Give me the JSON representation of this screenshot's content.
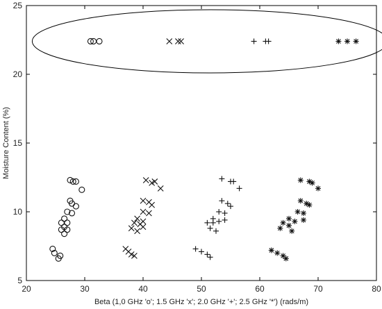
{
  "chart_data": {
    "type": "scatter",
    "xlabel": "Beta (1,0 GHz 'o'; 1.5 GHz 'x'; 2.0 GHz '+'; 2.5 GHz '*') (rads/m)",
    "ylabel": "Moisture Content (%)",
    "xlim": [
      20,
      80
    ],
    "ylim": [
      5,
      25
    ],
    "xticks": [
      "20",
      "30",
      "40",
      "50",
      "60",
      "70",
      "80"
    ],
    "yticks": [
      "5",
      "10",
      "15",
      "20",
      "25"
    ],
    "grid": false,
    "ellipse": {
      "cx": 51.5,
      "cy": 22.4,
      "rx": 30.5,
      "ry": 2.3
    },
    "series": [
      {
        "marker": "o",
        "points": [
          [
            31.0,
            22.4
          ],
          [
            31.5,
            22.4
          ],
          [
            32.5,
            22.4
          ],
          [
            27.5,
            12.3
          ],
          [
            28.0,
            12.2
          ],
          [
            28.5,
            12.2
          ],
          [
            29.5,
            11.6
          ],
          [
            27.5,
            10.8
          ],
          [
            27.8,
            10.6
          ],
          [
            28.5,
            10.4
          ],
          [
            27.0,
            10.0
          ],
          [
            27.8,
            9.9
          ],
          [
            26.5,
            9.5
          ],
          [
            27.0,
            9.2
          ],
          [
            26.0,
            9.2
          ],
          [
            26.5,
            8.9
          ],
          [
            26.0,
            8.7
          ],
          [
            27.0,
            8.7
          ],
          [
            26.5,
            8.4
          ],
          [
            24.5,
            7.3
          ],
          [
            24.8,
            7.0
          ],
          [
            25.8,
            6.8
          ],
          [
            25.5,
            6.6
          ]
        ]
      },
      {
        "marker": "x",
        "points": [
          [
            44.5,
            22.4
          ],
          [
            46.0,
            22.4
          ],
          [
            46.5,
            22.4
          ],
          [
            40.5,
            12.3
          ],
          [
            41.5,
            12.1
          ],
          [
            42.0,
            12.2
          ],
          [
            43.0,
            11.7
          ],
          [
            40.0,
            10.8
          ],
          [
            41.0,
            10.7
          ],
          [
            41.5,
            10.5
          ],
          [
            40.0,
            10.0
          ],
          [
            41.0,
            9.9
          ],
          [
            39.0,
            9.5
          ],
          [
            40.0,
            9.3
          ],
          [
            38.5,
            9.2
          ],
          [
            39.5,
            9.1
          ],
          [
            38.0,
            8.8
          ],
          [
            39.0,
            8.6
          ],
          [
            40.0,
            8.9
          ],
          [
            37.0,
            7.3
          ],
          [
            37.5,
            7.1
          ],
          [
            38.0,
            6.9
          ],
          [
            38.5,
            6.8
          ]
        ]
      },
      {
        "marker": "+",
        "points": [
          [
            59.0,
            22.4
          ],
          [
            61.0,
            22.4
          ],
          [
            61.5,
            22.4
          ],
          [
            53.5,
            12.4
          ],
          [
            55.0,
            12.2
          ],
          [
            55.5,
            12.2
          ],
          [
            56.5,
            11.7
          ],
          [
            53.5,
            10.8
          ],
          [
            54.5,
            10.6
          ],
          [
            55.0,
            10.4
          ],
          [
            53.0,
            10.0
          ],
          [
            54.0,
            9.9
          ],
          [
            52.0,
            9.5
          ],
          [
            53.0,
            9.3
          ],
          [
            51.0,
            9.2
          ],
          [
            52.0,
            9.2
          ],
          [
            51.5,
            8.8
          ],
          [
            52.5,
            8.6
          ],
          [
            54.0,
            9.4
          ],
          [
            49.0,
            7.3
          ],
          [
            50.0,
            7.1
          ],
          [
            51.0,
            6.9
          ],
          [
            51.5,
            6.7
          ]
        ]
      },
      {
        "marker": "*",
        "points": [
          [
            73.5,
            22.4
          ],
          [
            75.0,
            22.4
          ],
          [
            76.5,
            22.4
          ],
          [
            67.0,
            12.3
          ],
          [
            68.5,
            12.2
          ],
          [
            69.0,
            12.1
          ],
          [
            70.0,
            11.7
          ],
          [
            67.0,
            10.8
          ],
          [
            68.0,
            10.6
          ],
          [
            68.5,
            10.5
          ],
          [
            66.5,
            10.0
          ],
          [
            67.5,
            9.9
          ],
          [
            65.0,
            9.5
          ],
          [
            66.0,
            9.3
          ],
          [
            64.0,
            9.2
          ],
          [
            65.0,
            9.0
          ],
          [
            63.5,
            8.8
          ],
          [
            65.5,
            8.6
          ],
          [
            67.5,
            9.4
          ],
          [
            62.0,
            7.2
          ],
          [
            63.0,
            7.0
          ],
          [
            64.0,
            6.8
          ],
          [
            64.5,
            6.6
          ]
        ]
      }
    ]
  }
}
